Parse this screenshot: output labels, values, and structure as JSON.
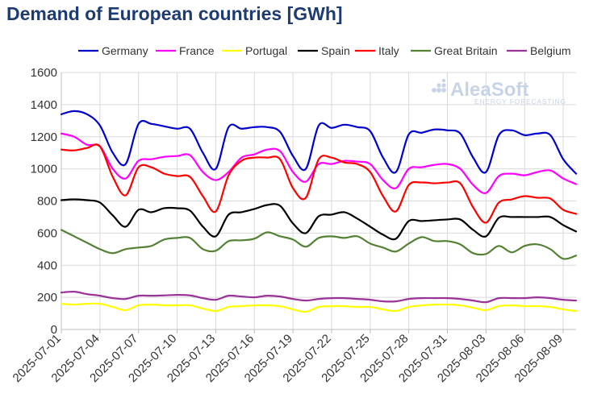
{
  "chart_data": {
    "type": "line",
    "title": "Demand of European countries [GWh]",
    "xlabel": "",
    "ylabel": "",
    "ylim": [
      0,
      1600
    ],
    "yticks": [
      0,
      200,
      400,
      600,
      800,
      1000,
      1200,
      1400,
      1600
    ],
    "grid": true,
    "legend_position": "top",
    "x": [
      "2025-07-01",
      "2025-07-02",
      "2025-07-03",
      "2025-07-04",
      "2025-07-05",
      "2025-07-06",
      "2025-07-07",
      "2025-07-08",
      "2025-07-09",
      "2025-07-10",
      "2025-07-11",
      "2025-07-12",
      "2025-07-13",
      "2025-07-14",
      "2025-07-15",
      "2025-07-16",
      "2025-07-17",
      "2025-07-18",
      "2025-07-19",
      "2025-07-20",
      "2025-07-21",
      "2025-07-22",
      "2025-07-23",
      "2025-07-24",
      "2025-07-25",
      "2025-07-26",
      "2025-07-27",
      "2025-07-28",
      "2025-07-29",
      "2025-07-30",
      "2025-07-31",
      "2025-08-01",
      "2025-08-02",
      "2025-08-03",
      "2025-08-04",
      "2025-08-05",
      "2025-08-06",
      "2025-08-07",
      "2025-08-08",
      "2025-08-09",
      "2025-08-10"
    ],
    "xtick_labels": [
      "2025-07-01",
      "2025-07-04",
      "2025-07-07",
      "2025-07-10",
      "2025-07-13",
      "2025-07-16",
      "2025-07-19",
      "2025-07-22",
      "2025-07-25",
      "2025-07-28",
      "2025-07-31",
      "2025-08-03",
      "2025-08-06",
      "2025-08-09"
    ],
    "series": [
      {
        "name": "Germany",
        "color": "#0000cc",
        "values": [
          1340,
          1360,
          1340,
          1270,
          1100,
          1030,
          1280,
          1280,
          1265,
          1250,
          1250,
          1100,
          1000,
          1260,
          1250,
          1260,
          1260,
          1230,
          1080,
          1000,
          1270,
          1255,
          1275,
          1260,
          1235,
          1070,
          980,
          1215,
          1225,
          1245,
          1240,
          1220,
          1070,
          980,
          1210,
          1240,
          1210,
          1220,
          1210,
          1060,
          970
        ]
      },
      {
        "name": "France",
        "color": "#ff00ff",
        "values": [
          1220,
          1200,
          1150,
          1140,
          1000,
          940,
          1050,
          1060,
          1075,
          1080,
          1085,
          980,
          930,
          980,
          1070,
          1090,
          1120,
          1110,
          980,
          920,
          1030,
          1030,
          1050,
          1045,
          1030,
          930,
          880,
          1000,
          1010,
          1025,
          1030,
          1000,
          900,
          850,
          955,
          970,
          960,
          980,
          990,
          940,
          905
        ]
      },
      {
        "name": "Portugal",
        "color": "#ffff00",
        "values": [
          160,
          155,
          160,
          160,
          140,
          120,
          150,
          155,
          150,
          150,
          150,
          130,
          115,
          140,
          145,
          150,
          150,
          145,
          125,
          110,
          140,
          145,
          145,
          140,
          140,
          125,
          115,
          140,
          150,
          155,
          155,
          150,
          135,
          120,
          145,
          150,
          145,
          145,
          140,
          125,
          115
        ]
      },
      {
        "name": "Spain",
        "color": "#000000",
        "values": [
          805,
          810,
          805,
          790,
          710,
          640,
          745,
          730,
          755,
          755,
          740,
          640,
          580,
          715,
          730,
          750,
          775,
          770,
          660,
          600,
          705,
          715,
          730,
          690,
          640,
          590,
          565,
          675,
          675,
          680,
          685,
          685,
          620,
          580,
          695,
          700,
          700,
          700,
          700,
          650,
          610
        ]
      },
      {
        "name": "Italy",
        "color": "#ff0000",
        "values": [
          1120,
          1115,
          1130,
          1140,
          950,
          835,
          1010,
          1010,
          970,
          955,
          950,
          830,
          735,
          960,
          1050,
          1070,
          1070,
          1060,
          880,
          820,
          1060,
          1070,
          1040,
          1030,
          980,
          830,
          735,
          900,
          915,
          910,
          915,
          910,
          760,
          665,
          790,
          810,
          830,
          820,
          815,
          745,
          720
        ]
      },
      {
        "name": "Great Britain",
        "color": "#548235",
        "values": [
          620,
          580,
          540,
          500,
          475,
          500,
          510,
          520,
          560,
          570,
          570,
          500,
          490,
          550,
          555,
          565,
          605,
          580,
          560,
          515,
          570,
          580,
          570,
          580,
          535,
          510,
          485,
          535,
          575,
          550,
          550,
          530,
          475,
          470,
          520,
          480,
          520,
          530,
          500,
          440,
          460
        ]
      },
      {
        "name": "Belgium",
        "color": "#993399",
        "values": [
          230,
          235,
          220,
          210,
          195,
          190,
          210,
          210,
          212,
          215,
          212,
          195,
          185,
          210,
          205,
          200,
          210,
          205,
          190,
          180,
          190,
          195,
          195,
          190,
          185,
          175,
          175,
          190,
          195,
          195,
          195,
          190,
          180,
          170,
          195,
          195,
          195,
          200,
          195,
          185,
          180
        ]
      }
    ]
  },
  "watermark": {
    "brand": "AleaSoft",
    "tagline": "ENERGY FORECASTING"
  }
}
